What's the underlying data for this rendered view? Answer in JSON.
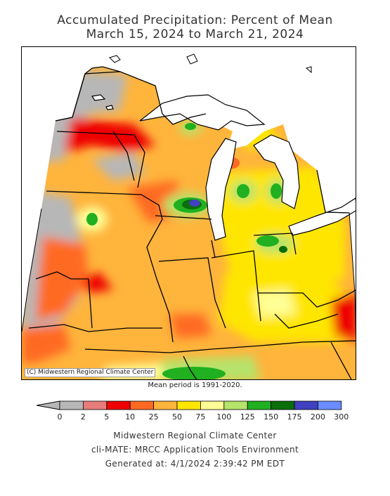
{
  "header": {
    "title_line1": "Accumulated Precipitation: Percent of Mean",
    "title_line2": "March 15, 2024 to March 21, 2024"
  },
  "map": {
    "copyright": "(C) Midwestern Regional Climate Center",
    "mean_period": "Mean period is 1991-2020."
  },
  "legend": {
    "ticks": [
      "0",
      "2",
      "5",
      "10",
      "25",
      "50",
      "75",
      "100",
      "125",
      "150",
      "175",
      "200",
      "300"
    ],
    "colors": [
      "#b7b7b7",
      "#e67c7c",
      "#ee0000",
      "#ff6a22",
      "#ffb43c",
      "#ffe600",
      "#ffff96",
      "#b6e36a",
      "#20b020",
      "#0a6e0a",
      "#4040c0",
      "#6a8cff"
    ]
  },
  "footer": {
    "line1": "Midwestern Regional Climate Center",
    "line2": "cli-MATE: MRCC Application Tools Environment",
    "line3": "Generated at: 4/1/2024 2:39:42 PM EDT"
  }
}
